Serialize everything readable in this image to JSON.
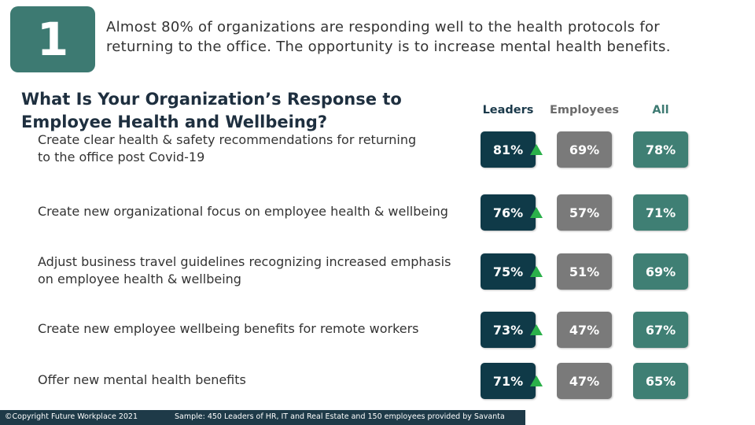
{
  "header": {
    "number": "1",
    "headline": [
      "Almost 80% of organizations are responding well to the health protocols for",
      "returning to the office. The opportunity is to increase mental health benefits."
    ]
  },
  "question": {
    "title": [
      "What Is Your Organization’s Response to",
      "Employee Health and Wellbeing?"
    ]
  },
  "table": {
    "columns": [
      "Leaders",
      "Employees",
      "All"
    ],
    "rows": [
      {
        "label": [
          "Create clear health & safety recommendations for returning",
          "to the office post Covid-19"
        ],
        "values": [
          "81%",
          "69%",
          "78%"
        ]
      },
      {
        "label": [
          "Create new organizational focus on employee health & wellbeing"
        ],
        "values": [
          "76%",
          "57%",
          "71%"
        ]
      },
      {
        "label": [
          "Adjust business travel guidelines recognizing increased emphasis",
          "on employee health & wellbeing"
        ],
        "values": [
          "75%",
          "51%",
          "69%"
        ]
      },
      {
        "label": [
          "Create new employee wellbeing benefits for remote workers"
        ],
        "values": [
          "73%",
          "47%",
          "67%"
        ]
      },
      {
        "label": [
          "Offer new mental health benefits"
        ],
        "values": [
          "71%",
          "47%",
          "65%"
        ]
      }
    ]
  },
  "footer": {
    "copyright": "©Copyright Future Workplace 2021",
    "sample": "Sample: 450 Leaders of HR, IT and Real Estate and 150 employees provided by Savanta"
  }
}
